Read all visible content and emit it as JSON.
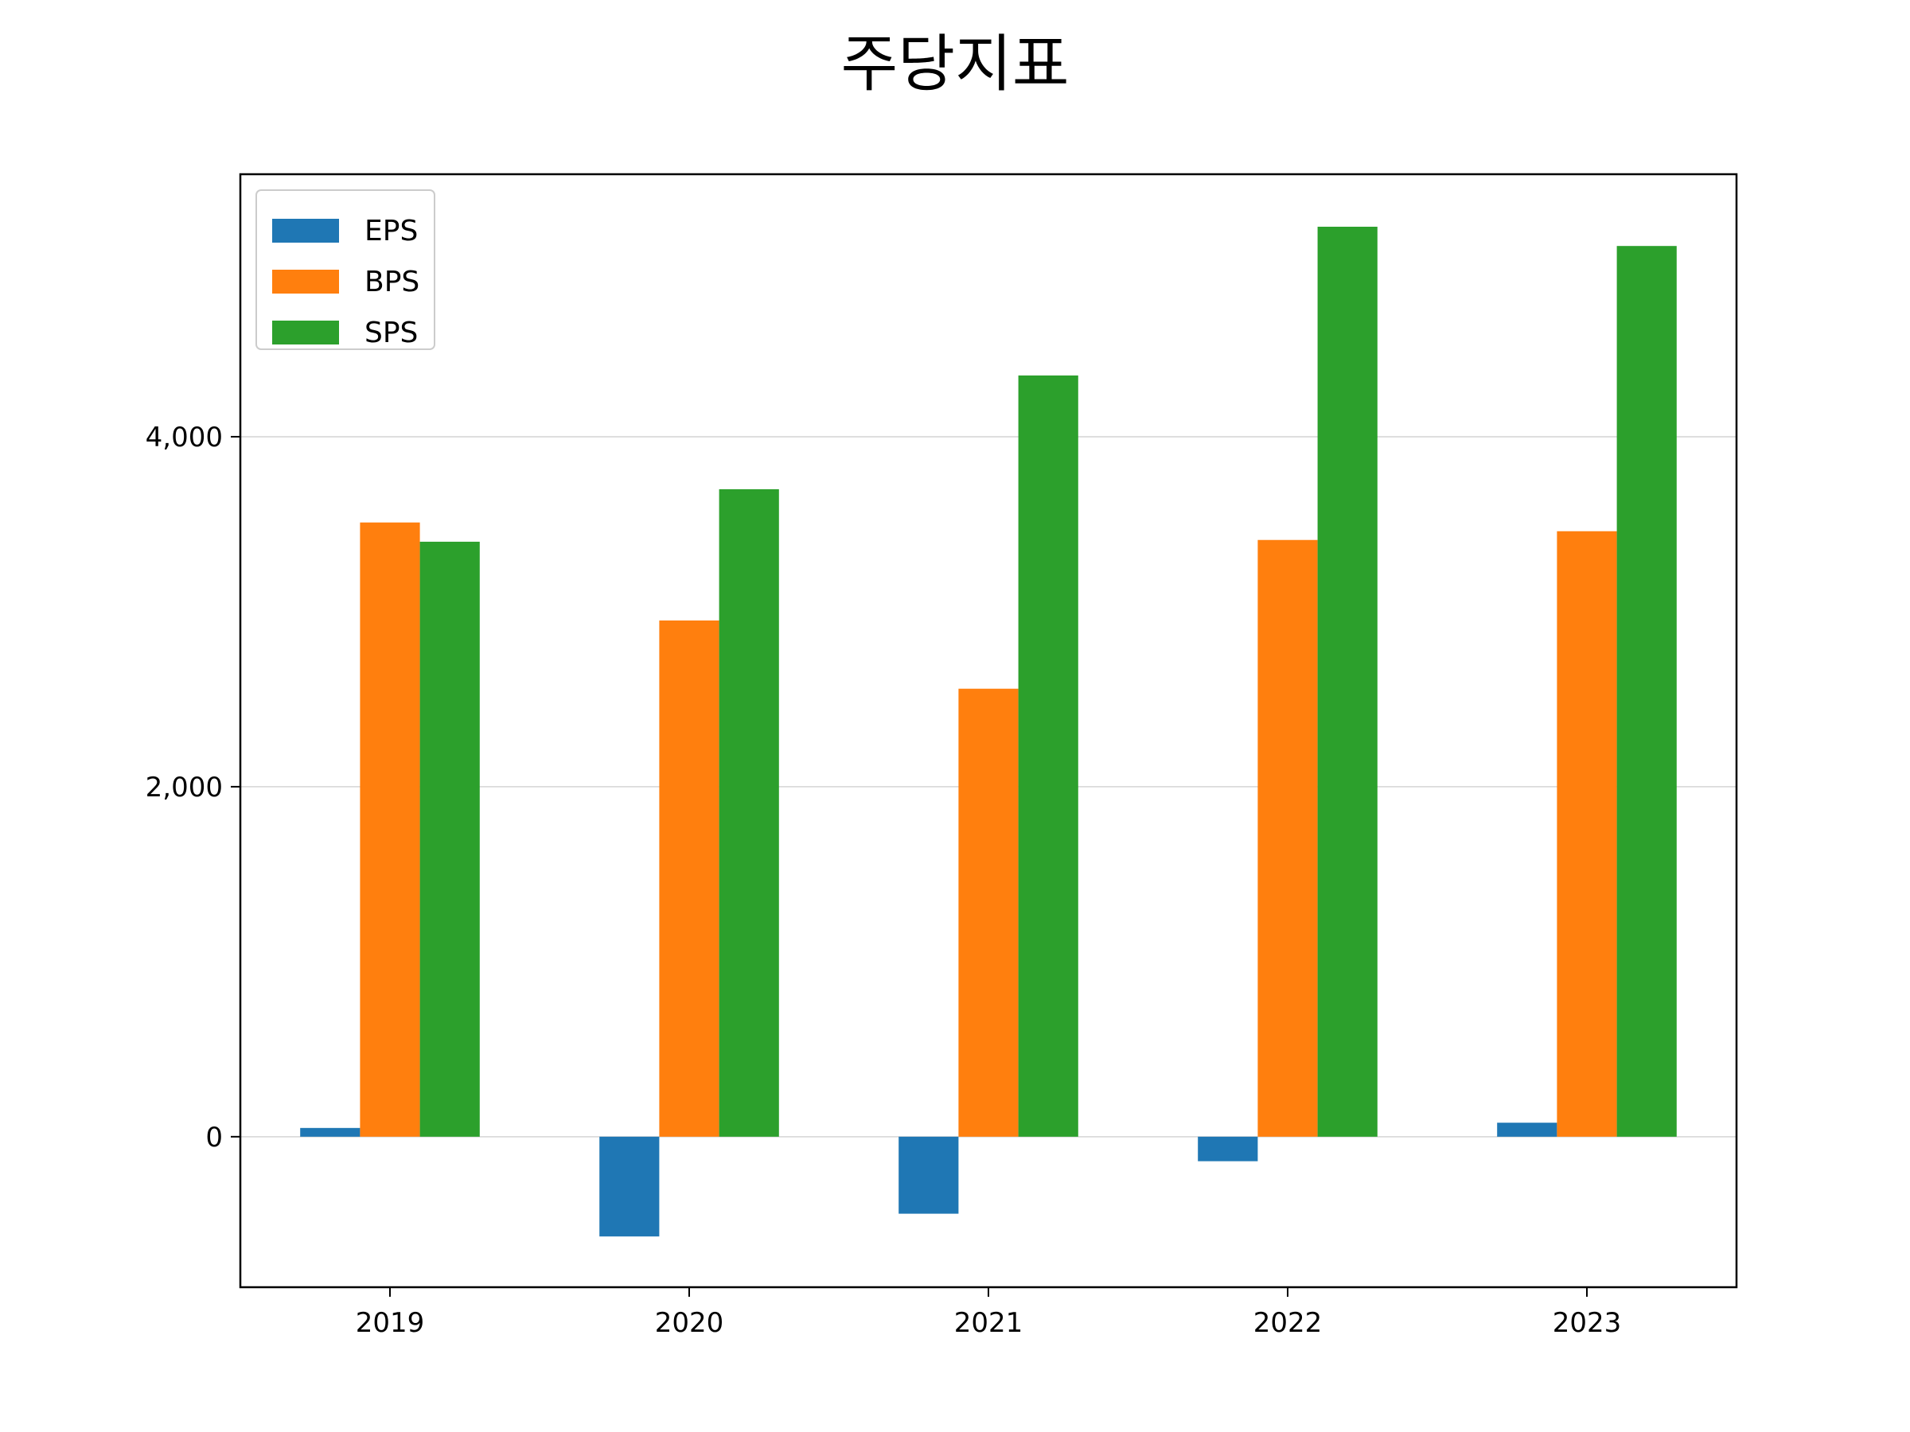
{
  "chart_data": {
    "type": "bar",
    "title": "주당지표",
    "xlabel": "",
    "ylabel": "",
    "categories": [
      "2019",
      "2020",
      "2021",
      "2022",
      "2023"
    ],
    "series": [
      {
        "name": "EPS",
        "color": "#1f77b4",
        "values": [
          50,
          -570,
          -440,
          -140,
          80
        ]
      },
      {
        "name": "BPS",
        "color": "#ff7f0e",
        "values": [
          3510,
          2950,
          2560,
          3410,
          3460
        ]
      },
      {
        "name": "SPS",
        "color": "#2ca02c",
        "values": [
          3400,
          3700,
          4350,
          5200,
          5090
        ]
      }
    ],
    "ylim": [
      -860,
      5500
    ],
    "yticks": [
      0,
      2000,
      4000
    ],
    "ytick_labels": [
      "0",
      "2,000",
      "4,000"
    ],
    "grid": "horizontal",
    "legend_position": "upper-left"
  }
}
